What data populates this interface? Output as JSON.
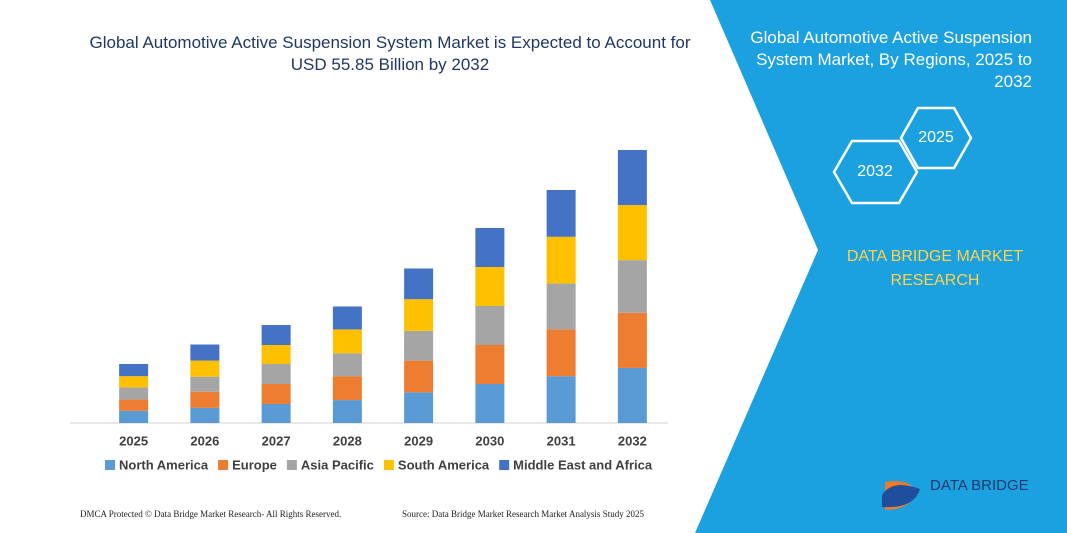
{
  "chart_data": {
    "type": "stacked-bar",
    "title": "Global Automotive Active Suspension System Market is Expected to Account for USD 55.85 Billion by 2032",
    "categories": [
      "2025",
      "2026",
      "2027",
      "2028",
      "2029",
      "2030",
      "2031",
      "2032"
    ],
    "series": [
      {
        "name": "North America",
        "color": "#5b9bd5",
        "values": [
          2.5,
          3.1,
          3.9,
          4.7,
          6.3,
          8.0,
          9.6,
          11.3
        ]
      },
      {
        "name": "Europe",
        "color": "#ed7d31",
        "values": [
          2.3,
          3.3,
          4.1,
          4.9,
          6.5,
          8.0,
          9.6,
          11.3
        ]
      },
      {
        "name": "Asia Pacific",
        "color": "#a5a5a5",
        "values": [
          2.5,
          3.1,
          4.1,
          4.7,
          6.1,
          8.0,
          9.4,
          10.8
        ]
      },
      {
        "name": "South America",
        "color": "#ffc000",
        "values": [
          2.3,
          3.3,
          3.9,
          4.9,
          6.5,
          8.0,
          9.6,
          11.3
        ]
      },
      {
        "name": "Middle East and Africa",
        "color": "#4472c4",
        "values": [
          2.5,
          3.3,
          4.1,
          4.7,
          6.3,
          8.0,
          9.6,
          11.3
        ]
      }
    ]
  },
  "side_panel": {
    "title": "Global Automotive Active Suspension System Market, By Regions, 2025 to 2032",
    "hex_labels": [
      "2025",
      "2032"
    ],
    "brand": "DATA BRIDGE MARKET RESEARCH"
  },
  "footer": {
    "left": "DMCA Protected © Data Bridge Market Research- All Rights Reserved.",
    "right": "Source: Data Bridge Market Research Market Analysis Study 2025"
  },
  "logo": "DATA BRIDGE"
}
